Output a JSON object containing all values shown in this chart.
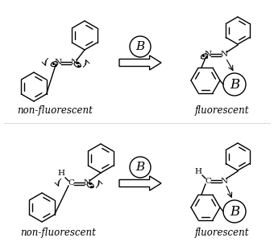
{
  "bg_color": "#ffffff",
  "line_color": "#000000",
  "label_nonfluorescent": "non-fluorescent",
  "label_fluorescent": "fluorescent",
  "label_B": "B",
  "font_size_label": 8.5,
  "font_size_atom": 7.5,
  "font_size_B_circle": 11
}
